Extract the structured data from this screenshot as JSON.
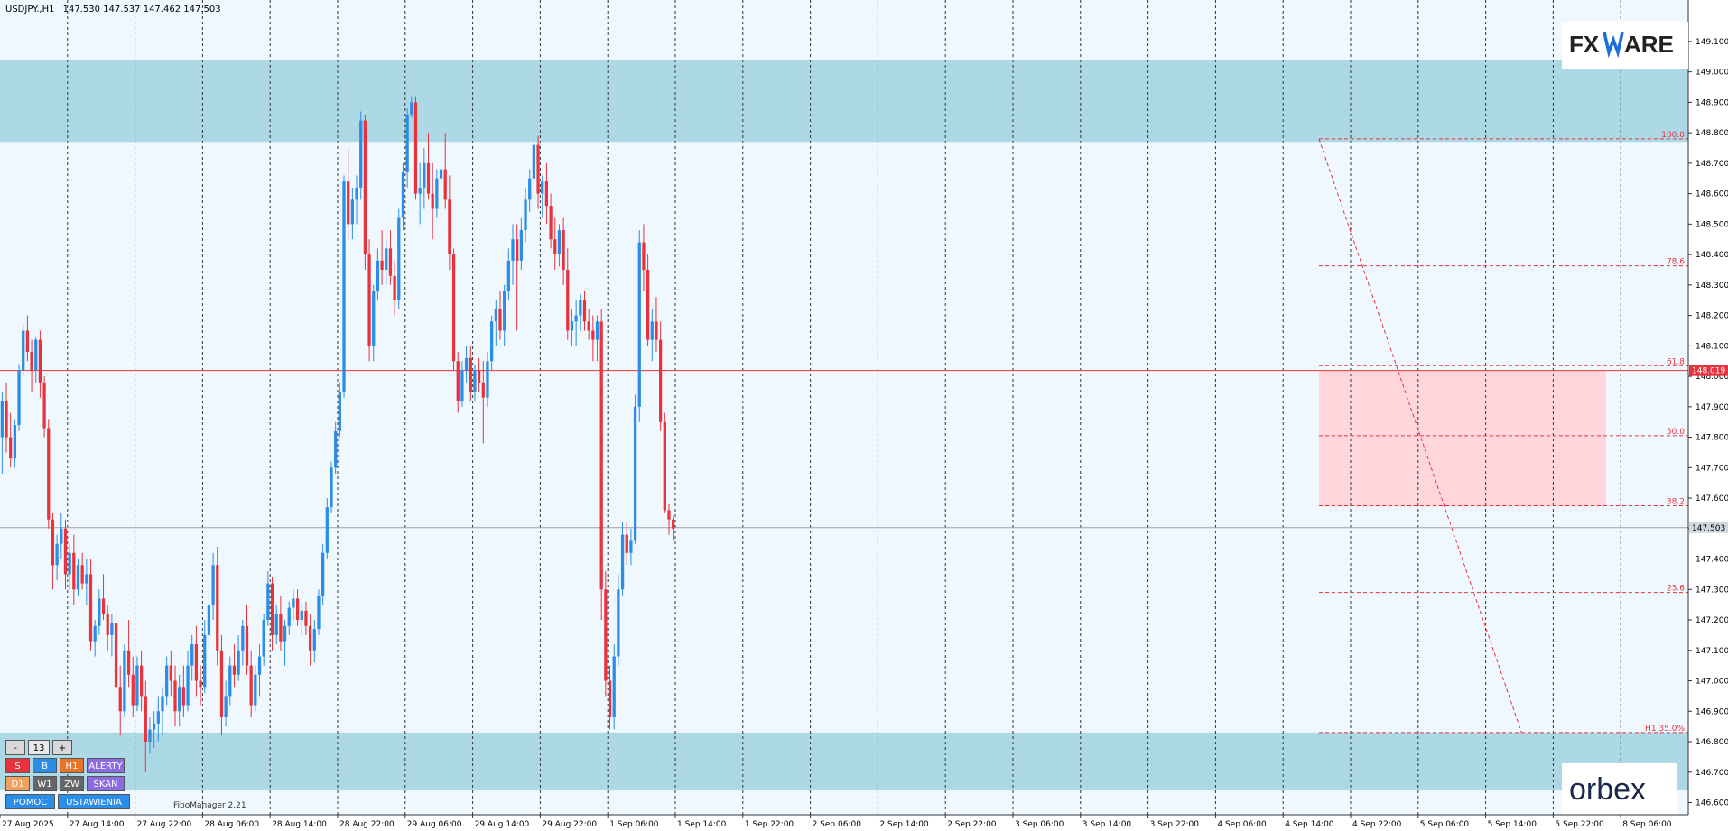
{
  "header": {
    "symbol": "USDJPY.,H1",
    "ohlc": "147.530 147.537 147.462 147.503"
  },
  "logos": {
    "fxmag": "FXMAG",
    "fxmag_head": "FX",
    "fxmag_tail": "ARE",
    "orbex": "orbex"
  },
  "toolbar": {
    "minus": "-",
    "count": "13",
    "plus": "+",
    "s": "S",
    "b": "B",
    "h1": "H1",
    "alerty": "ALERTY",
    "d1": "D1",
    "w1": "W1",
    "zw": "ZW",
    "skan": "SKAN",
    "pomoc": "POMOC",
    "ustawienia": "USTAWIENIA",
    "fibomanager": "FiboManager 2.21"
  },
  "colors": {
    "bg": "#f0f8ff",
    "bull": "#2a8de8",
    "bear": "#e8323c",
    "zone_blue": "#add8e6",
    "zone_pink": "#ffd6dc",
    "fibo": "#e8323c",
    "grid": "#333333"
  },
  "chart_data": {
    "type": "candlestick",
    "symbol": "USDJPY",
    "timeframe": "H1",
    "ylim": [
      146.56,
      149.236
    ],
    "y_ticks": [
      "149.100",
      "149.000",
      "148.900",
      "148.800",
      "148.700",
      "148.600",
      "148.500",
      "148.400",
      "148.300",
      "148.200",
      "148.100",
      "148.000",
      "147.900",
      "147.800",
      "147.700",
      "147.600",
      "147.500",
      "147.400",
      "147.300",
      "147.200",
      "147.100",
      "147.000",
      "146.900",
      "146.800",
      "146.700",
      "146.600"
    ],
    "y_tick_values": [
      149.1,
      149.0,
      148.9,
      148.8,
      148.7,
      148.6,
      148.5,
      148.4,
      148.3,
      148.2,
      148.1,
      148.0,
      147.9,
      147.8,
      147.7,
      147.6,
      147.5,
      147.4,
      147.3,
      147.2,
      147.1,
      147.0,
      146.9,
      146.8,
      146.7,
      146.6
    ],
    "x_labels": [
      "27 Aug 2025",
      "27 Aug 14:00",
      "27 Aug 22:00",
      "28 Aug 06:00",
      "28 Aug 14:00",
      "28 Aug 22:00",
      "29 Aug 06:00",
      "29 Aug 14:00",
      "29 Aug 22:00",
      "1 Sep 06:00",
      "1 Sep 14:00",
      "1 Sep 22:00",
      "2 Sep 06:00",
      "2 Sep 14:00",
      "2 Sep 22:00",
      "3 Sep 06:00",
      "3 Sep 14:00",
      "3 Sep 22:00",
      "4 Sep 06:00",
      "4 Sep 14:00",
      "4 Sep 22:00",
      "5 Sep 06:00",
      "5 Sep 14:00",
      "5 Sep 22:00",
      "8 Sep 06:00"
    ],
    "x_label_bars": [
      0,
      16,
      32,
      48,
      64,
      80,
      96,
      112,
      128,
      144,
      160,
      176,
      192,
      208,
      224,
      240,
      256,
      272,
      288,
      304,
      320,
      336,
      352,
      368,
      384
    ],
    "bars_count": 400,
    "price_labels": {
      "current": {
        "value": 147.503,
        "label": "147.503"
      },
      "level": {
        "value": 148.019,
        "label": "148.019"
      }
    },
    "zones": [
      {
        "name": "resistance",
        "from": 148.77,
        "to": 149.04
      },
      {
        "name": "support",
        "from": 146.64,
        "to": 146.83
      },
      {
        "name": "retracement",
        "from": 147.572,
        "to": 148.019,
        "start_bar": 312,
        "end_bar": 380
      }
    ],
    "fibo": {
      "high": 148.78,
      "low": 146.83,
      "start_bar": 312,
      "levels": [
        {
          "label": "100.0",
          "value": 148.78
        },
        {
          "label": "78.6",
          "value": 148.363
        },
        {
          "label": "61.8",
          "value": 148.035
        },
        {
          "label": "50.0",
          "value": 147.805
        },
        {
          "label": "38.2",
          "value": 147.575
        },
        {
          "label": "23.6",
          "value": 147.29
        },
        {
          "label": "H1 35.0%",
          "value": 146.83
        }
      ]
    },
    "candles": [
      [
        147.8,
        147.95,
        147.68,
        147.92
      ],
      [
        147.92,
        147.98,
        147.75,
        147.8
      ],
      [
        147.8,
        147.88,
        147.7,
        147.73
      ],
      [
        147.73,
        147.86,
        147.7,
        147.84
      ],
      [
        147.84,
        148.04,
        147.82,
        148.02
      ],
      [
        148.02,
        148.17,
        148.0,
        148.15
      ],
      [
        148.15,
        148.2,
        148.05,
        148.08
      ],
      [
        148.08,
        148.12,
        147.95,
        148.02
      ],
      [
        148.02,
        148.13,
        147.98,
        148.12
      ],
      [
        148.12,
        148.15,
        147.93,
        147.98
      ],
      [
        147.98,
        148.0,
        147.8,
        147.83
      ],
      [
        147.83,
        147.86,
        147.5,
        147.53
      ],
      [
        147.53,
        147.55,
        147.3,
        147.38
      ],
      [
        147.38,
        147.48,
        147.33,
        147.45
      ],
      [
        147.45,
        147.55,
        147.4,
        147.5
      ],
      [
        147.5,
        147.53,
        147.3,
        147.35
      ],
      [
        147.35,
        147.45,
        147.3,
        147.42
      ],
      [
        147.42,
        147.48,
        147.25,
        147.3
      ],
      [
        147.3,
        147.4,
        147.28,
        147.38
      ],
      [
        147.38,
        147.42,
        147.3,
        147.32
      ],
      [
        147.32,
        147.4,
        147.25,
        147.35
      ],
      [
        147.35,
        147.4,
        147.1,
        147.13
      ],
      [
        147.13,
        147.2,
        147.08,
        147.18
      ],
      [
        147.18,
        147.3,
        147.15,
        147.27
      ],
      [
        147.27,
        147.35,
        147.2,
        147.22
      ],
      [
        147.22,
        147.25,
        147.1,
        147.15
      ],
      [
        147.15,
        147.22,
        147.08,
        147.19
      ],
      [
        147.19,
        147.23,
        146.95,
        146.98
      ],
      [
        146.98,
        147.05,
        146.82,
        146.9
      ],
      [
        146.9,
        147.12,
        146.88,
        147.1
      ],
      [
        147.1,
        147.2,
        146.98,
        147.02
      ],
      [
        147.02,
        147.08,
        146.88,
        146.92
      ],
      [
        146.92,
        147.08,
        146.9,
        147.05
      ],
      [
        147.05,
        147.1,
        146.9,
        146.95
      ],
      [
        146.95,
        147.0,
        146.7,
        146.8
      ],
      [
        146.8,
        146.88,
        146.76,
        146.84
      ],
      [
        146.84,
        146.9,
        146.78,
        146.86
      ],
      [
        146.86,
        146.95,
        146.8,
        146.9
      ],
      [
        146.9,
        146.98,
        146.82,
        146.95
      ],
      [
        146.95,
        147.08,
        146.92,
        147.05
      ],
      [
        147.05,
        147.1,
        146.95,
        147.0
      ],
      [
        147.0,
        147.05,
        146.85,
        146.9
      ],
      [
        146.9,
        147.02,
        146.85,
        146.98
      ],
      [
        146.98,
        147.05,
        146.88,
        146.92
      ],
      [
        146.92,
        147.1,
        146.9,
        147.05
      ],
      [
        147.05,
        147.15,
        147.0,
        147.12
      ],
      [
        147.12,
        147.18,
        146.95,
        147.0
      ],
      [
        147.0,
        147.05,
        146.92,
        146.98
      ],
      [
        146.98,
        147.2,
        146.96,
        147.15
      ],
      [
        147.15,
        147.3,
        147.1,
        147.25
      ],
      [
        147.25,
        147.42,
        147.2,
        147.38
      ],
      [
        147.38,
        147.44,
        147.05,
        147.1
      ],
      [
        147.1,
        147.15,
        146.82,
        146.88
      ],
      [
        146.88,
        147.0,
        146.85,
        146.95
      ],
      [
        146.95,
        147.08,
        146.92,
        147.05
      ],
      [
        147.05,
        147.12,
        146.98,
        147.02
      ],
      [
        147.02,
        147.15,
        147.0,
        147.1
      ],
      [
        147.1,
        147.2,
        147.05,
        147.18
      ],
      [
        147.18,
        147.25,
        147.02,
        147.05
      ],
      [
        147.05,
        147.1,
        146.88,
        146.92
      ],
      [
        146.92,
        147.05,
        146.9,
        147.02
      ],
      [
        147.02,
        147.12,
        146.95,
        147.08
      ],
      [
        147.08,
        147.22,
        147.05,
        147.2
      ],
      [
        147.2,
        147.36,
        147.18,
        147.32
      ],
      [
        147.32,
        147.34,
        147.1,
        147.15
      ],
      [
        147.15,
        147.25,
        147.12,
        147.22
      ],
      [
        147.22,
        147.28,
        147.1,
        147.13
      ],
      [
        147.13,
        147.2,
        147.05,
        147.18
      ],
      [
        147.18,
        147.26,
        147.15,
        147.24
      ],
      [
        147.24,
        147.3,
        147.2,
        147.27
      ],
      [
        147.27,
        147.3,
        147.18,
        147.2
      ],
      [
        147.2,
        147.25,
        147.15,
        147.23
      ],
      [
        147.23,
        147.26,
        147.15,
        147.18
      ],
      [
        147.18,
        147.22,
        147.05,
        147.1
      ],
      [
        147.1,
        147.2,
        147.06,
        147.17
      ],
      [
        147.17,
        147.3,
        147.15,
        147.28
      ],
      [
        147.28,
        147.45,
        147.25,
        147.42
      ],
      [
        147.42,
        147.6,
        147.4,
        147.57
      ],
      [
        147.57,
        147.72,
        147.55,
        147.7
      ],
      [
        147.7,
        147.85,
        147.68,
        147.82
      ],
      [
        147.82,
        147.98,
        147.8,
        147.95
      ],
      [
        147.95,
        148.66,
        147.93,
        148.64
      ],
      [
        148.64,
        148.75,
        148.45,
        148.5
      ],
      [
        148.5,
        148.62,
        148.45,
        148.58
      ],
      [
        148.58,
        148.66,
        148.5,
        148.62
      ],
      [
        148.62,
        148.87,
        148.58,
        148.84
      ],
      [
        148.84,
        148.86,
        148.35,
        148.4
      ],
      [
        148.4,
        148.45,
        148.05,
        148.1
      ],
      [
        148.1,
        148.3,
        148.05,
        148.28
      ],
      [
        148.28,
        148.42,
        148.25,
        148.38
      ],
      [
        148.38,
        148.48,
        148.3,
        148.35
      ],
      [
        148.35,
        148.45,
        148.3,
        148.42
      ],
      [
        148.42,
        148.48,
        148.3,
        148.33
      ],
      [
        148.33,
        148.38,
        148.2,
        148.25
      ],
      [
        148.25,
        148.55,
        148.22,
        148.52
      ],
      [
        148.52,
        148.7,
        148.48,
        148.67
      ],
      [
        148.67,
        148.88,
        148.62,
        148.86
      ],
      [
        148.86,
        148.92,
        148.85,
        148.9
      ],
      [
        148.9,
        148.92,
        148.58,
        148.6
      ],
      [
        148.6,
        148.7,
        148.5,
        148.62
      ],
      [
        148.62,
        148.75,
        148.55,
        148.7
      ],
      [
        148.7,
        148.8,
        148.58,
        148.6
      ],
      [
        148.6,
        148.7,
        148.45,
        148.55
      ],
      [
        148.55,
        148.68,
        148.52,
        148.65
      ],
      [
        148.65,
        148.72,
        148.6,
        148.68
      ],
      [
        148.68,
        148.8,
        148.55,
        148.58
      ],
      [
        148.58,
        148.66,
        148.35,
        148.4
      ],
      [
        148.4,
        148.42,
        148.02,
        148.05
      ],
      [
        148.05,
        148.08,
        147.88,
        147.92
      ],
      [
        147.92,
        148.05,
        147.9,
        148.02
      ],
      [
        148.02,
        148.1,
        147.98,
        148.06
      ],
      [
        148.06,
        148.1,
        147.92,
        147.95
      ],
      [
        147.95,
        148.04,
        147.92,
        148.02
      ],
      [
        148.02,
        148.06,
        147.95,
        147.98
      ],
      [
        147.98,
        148.05,
        147.78,
        147.93
      ],
      [
        147.93,
        148.08,
        147.9,
        148.05
      ],
      [
        148.05,
        148.2,
        148.02,
        148.18
      ],
      [
        148.18,
        148.25,
        148.1,
        148.22
      ],
      [
        148.22,
        148.28,
        148.12,
        148.15
      ],
      [
        148.15,
        148.3,
        148.1,
        148.28
      ],
      [
        148.28,
        148.42,
        148.25,
        148.38
      ],
      [
        148.38,
        148.5,
        148.3,
        148.45
      ],
      [
        148.45,
        148.5,
        148.15,
        148.38
      ],
      [
        148.38,
        148.52,
        148.35,
        148.48
      ],
      [
        148.48,
        148.62,
        148.44,
        148.58
      ],
      [
        148.58,
        148.68,
        148.54,
        148.65
      ],
      [
        148.65,
        148.78,
        148.62,
        148.76
      ],
      [
        148.76,
        148.79,
        148.55,
        148.6
      ],
      [
        148.6,
        148.66,
        148.52,
        148.64
      ],
      [
        148.64,
        148.7,
        148.5,
        148.56
      ],
      [
        148.56,
        148.6,
        148.42,
        148.45
      ],
      [
        148.45,
        148.52,
        148.35,
        148.4
      ],
      [
        148.4,
        148.5,
        148.36,
        148.48
      ],
      [
        148.48,
        148.52,
        148.3,
        148.35
      ],
      [
        148.35,
        148.42,
        148.12,
        148.15
      ],
      [
        148.15,
        148.22,
        148.1,
        148.18
      ],
      [
        148.18,
        148.25,
        148.1,
        148.2
      ],
      [
        148.2,
        148.27,
        148.15,
        148.25
      ],
      [
        148.25,
        148.28,
        148.15,
        148.18
      ],
      [
        148.18,
        148.22,
        148.12,
        148.15
      ],
      [
        148.15,
        148.2,
        148.05,
        148.12
      ],
      [
        148.12,
        148.2,
        148.05,
        148.18
      ],
      [
        148.18,
        148.22,
        147.2,
        147.3
      ],
      [
        147.3,
        147.36,
        146.95,
        147.0
      ],
      [
        147.0,
        147.05,
        146.84,
        146.88
      ],
      [
        146.88,
        147.12,
        146.84,
        147.08
      ],
      [
        147.08,
        147.35,
        147.05,
        147.3
      ],
      [
        147.3,
        147.52,
        147.28,
        147.48
      ],
      [
        147.48,
        147.52,
        147.38,
        147.42
      ],
      [
        147.42,
        147.5,
        147.38,
        147.46
      ],
      [
        147.46,
        147.94,
        147.45,
        147.9
      ],
      [
        147.9,
        148.48,
        147.85,
        148.44
      ],
      [
        148.44,
        148.5,
        148.28,
        148.35
      ],
      [
        148.35,
        148.4,
        148.1,
        148.12
      ],
      [
        148.12,
        148.22,
        148.05,
        148.18
      ],
      [
        148.18,
        148.26,
        148.08,
        148.12
      ],
      [
        148.12,
        148.18,
        147.82,
        147.85
      ],
      [
        147.85,
        147.88,
        147.55,
        147.56
      ],
      [
        147.56,
        147.58,
        147.48,
        147.53
      ],
      [
        147.53,
        147.54,
        147.46,
        147.5
      ]
    ]
  }
}
